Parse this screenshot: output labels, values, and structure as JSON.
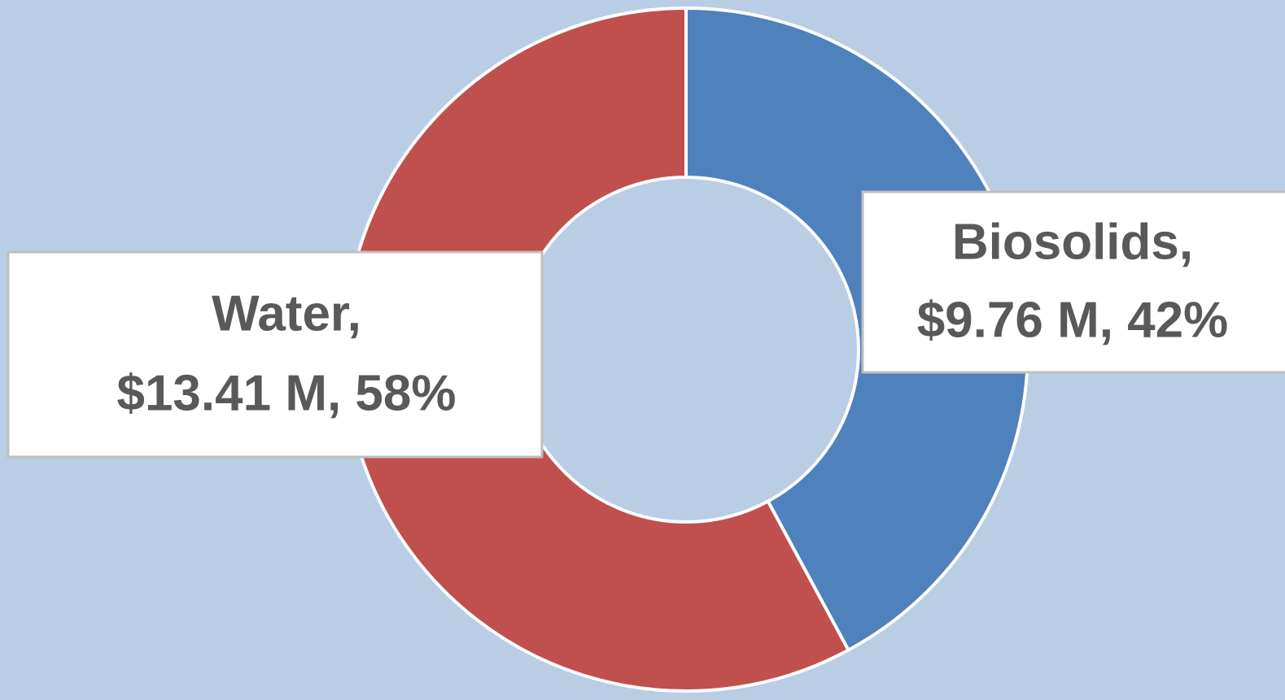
{
  "chart_data": {
    "type": "donut",
    "categories": [
      "Biosolids,",
      "Water,"
    ],
    "values": [
      9.76,
      13.41
    ],
    "value_labels": [
      "$9.76 M, 42%",
      "$13.41 M, 58%"
    ],
    "colors": [
      "#4f81bd",
      "#c0504d"
    ]
  }
}
